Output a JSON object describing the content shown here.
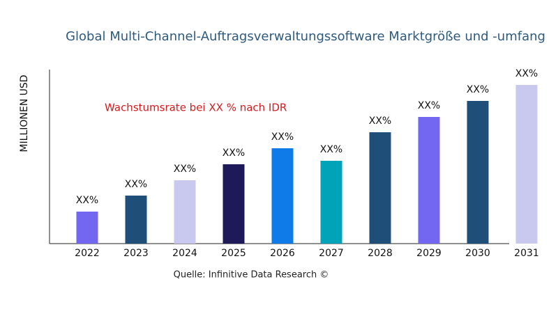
{
  "chart_data": {
    "type": "bar",
    "title": "Global Multi-Channel-Auftragsverwaltungssoftware Marktgröße und -umfang",
    "y_label": "MILLIONEN USD",
    "annotation": "Wachstumsrate bei XX % nach IDR",
    "source": "Quelle: Infinitive Data Research ©",
    "categories": [
      "2022",
      "2023",
      "2024",
      "2025",
      "2026",
      "2027",
      "2028",
      "2029",
      "2030",
      "2031"
    ],
    "values": [
      46,
      69,
      91,
      114,
      137,
      119,
      160,
      182,
      205,
      228
    ],
    "value_labels": [
      "XX%",
      "XX%",
      "XX%",
      "XX%",
      "XX%",
      "XX%",
      "XX%",
      "XX%",
      "XX%",
      "XX%"
    ],
    "colors": [
      "#7366f0",
      "#1f4e79",
      "#c9c9f0",
      "#1e1a5a",
      "#0f7be8",
      "#00a3b8",
      "#1f4e79",
      "#7366f0",
      "#1f4e79",
      "#c9c9f0"
    ],
    "ylim": [
      0,
      250
    ]
  }
}
